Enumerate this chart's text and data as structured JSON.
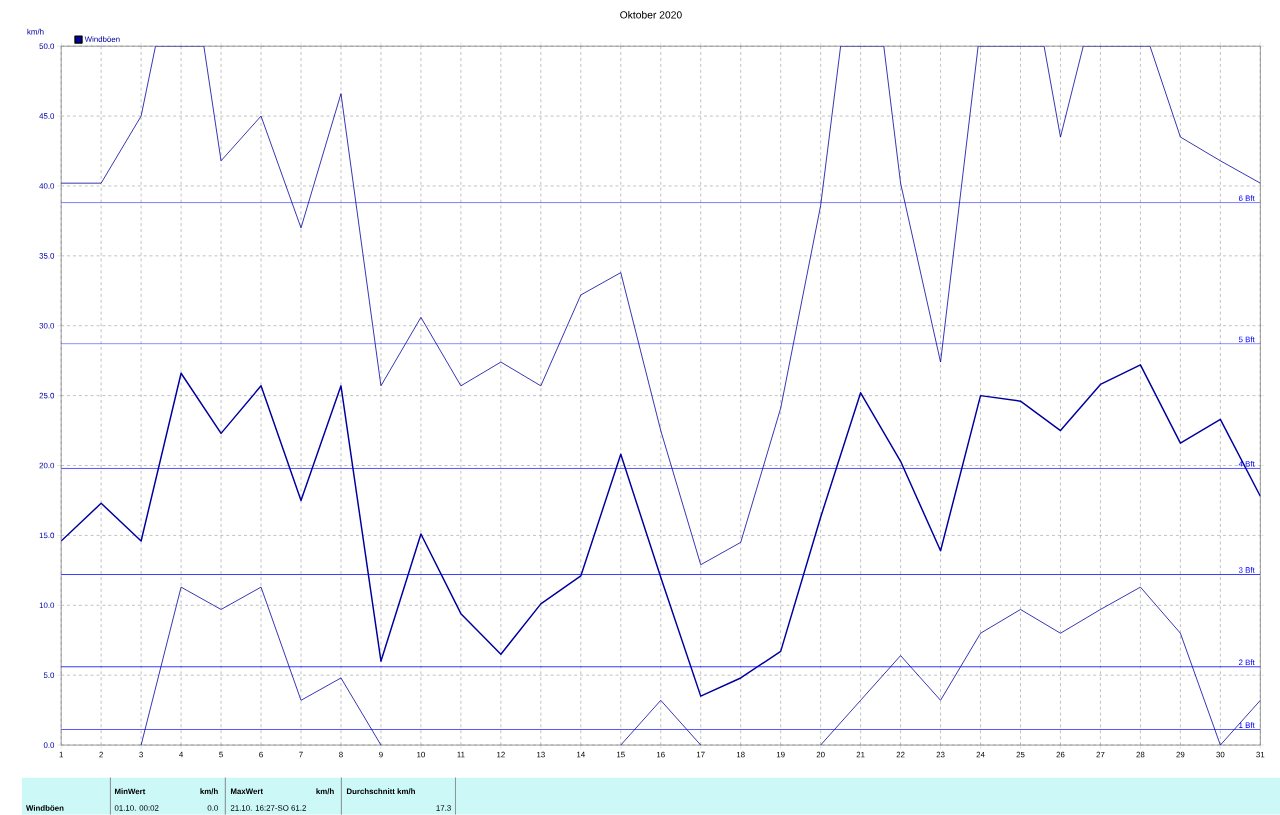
{
  "chart_data": {
    "type": "line",
    "title": "Oktober 2020",
    "ylabel": "km/h",
    "x": [
      1,
      2,
      3,
      4,
      5,
      6,
      7,
      8,
      9,
      10,
      11,
      12,
      13,
      14,
      15,
      16,
      17,
      18,
      19,
      20,
      21,
      22,
      23,
      24,
      25,
      26,
      27,
      28,
      29,
      30,
      31
    ],
    "series": [
      {
        "color": "#0000a0",
        "x": [
          1,
          2,
          3,
          3.36,
          4.57,
          5,
          6,
          7,
          8,
          9,
          10,
          11,
          12,
          13,
          14,
          15,
          16,
          17,
          18,
          19,
          20,
          20.5,
          21.58,
          22,
          23,
          23.94,
          25.59,
          26,
          26.57,
          28.24,
          29,
          30,
          31
        ],
        "values": [
          40.2,
          40.2,
          45.0,
          50,
          50,
          41.8,
          45.0,
          37.0,
          46.6,
          25.7,
          30.6,
          25.7,
          27.4,
          25.7,
          32.2,
          33.8,
          22.5,
          12.9,
          14.5,
          24.1,
          38.6,
          50,
          50,
          40.2,
          27.4,
          50,
          50,
          43.5,
          50,
          50,
          43.5,
          41.8,
          40.2
        ]
      },
      {
        "name": "Windböen",
        "color": "#0000a0",
        "values": [
          14.6,
          17.3,
          14.6,
          26.6,
          22.3,
          25.7,
          17.5,
          25.7,
          6.0,
          15.1,
          9.4,
          6.5,
          10.1,
          12.1,
          20.8,
          12.0,
          3.5,
          4.8,
          6.7,
          16.3,
          25.2,
          20.3,
          13.9,
          25.0,
          24.6,
          22.5,
          25.8,
          27.2,
          21.6,
          23.3,
          17.8
        ]
      },
      {
        "color": "#0000a0",
        "values": [
          null,
          null,
          0.0,
          11.3,
          9.7,
          11.3,
          3.2,
          4.8,
          0.0,
          null,
          null,
          null,
          null,
          null,
          0.0,
          3.2,
          0.0,
          null,
          null,
          0.0,
          3.2,
          6.4,
          3.2,
          8.0,
          9.7,
          8.0,
          9.7,
          11.3,
          8.0,
          0.0,
          3.2
        ]
      }
    ],
    "xlim": [
      1,
      31
    ],
    "ylim": [
      0,
      50
    ],
    "xticks": [
      1,
      2,
      3,
      4,
      5,
      6,
      7,
      8,
      9,
      10,
      11,
      12,
      13,
      14,
      15,
      16,
      17,
      18,
      19,
      20,
      21,
      22,
      23,
      24,
      25,
      26,
      27,
      28,
      29,
      30,
      31
    ],
    "yticks": [
      {
        "value": 0,
        "label": "0.0"
      },
      {
        "value": 5,
        "label": "5.0"
      },
      {
        "value": 10,
        "label": "10.0"
      },
      {
        "value": 15,
        "label": "15.0"
      },
      {
        "value": 20,
        "label": "20.0"
      },
      {
        "value": 25,
        "label": "25.0"
      },
      {
        "value": 30,
        "label": "30.0"
      },
      {
        "value": 35,
        "label": "35.0"
      },
      {
        "value": 40,
        "label": "40.0"
      },
      {
        "value": 45,
        "label": "45.0"
      },
      {
        "value": 50,
        "label": "50.0"
      }
    ],
    "ref_lines": [
      {
        "axis": "y",
        "value": 38.8,
        "label": "6 Bft",
        "color": "#0000ff"
      },
      {
        "axis": "y",
        "value": 28.7,
        "label": "5 Bft",
        "color": "#0000ff"
      },
      {
        "axis": "y",
        "value": 19.8,
        "label": "4 Bft",
        "color": "#0000ff"
      },
      {
        "axis": "y",
        "value": 12.2,
        "label": "3 Bft",
        "color": "#0000ff"
      },
      {
        "axis": "y",
        "value": 5.6,
        "label": "2 Bft",
        "color": "#0000ff"
      },
      {
        "axis": "y",
        "value": 1.1,
        "label": "1 Bft",
        "color": "#0000ff"
      }
    ],
    "grid": true,
    "legend": "top left",
    "annotations": [
      "Windböen",
      "MinWert",
      "km/h",
      "01.10.  00:02",
      "0.0",
      "MaxWert",
      "km/h",
      "21.10.  16:27-SO 61.2",
      "Durchschnitt km/h",
      "17.3"
    ]
  }
}
